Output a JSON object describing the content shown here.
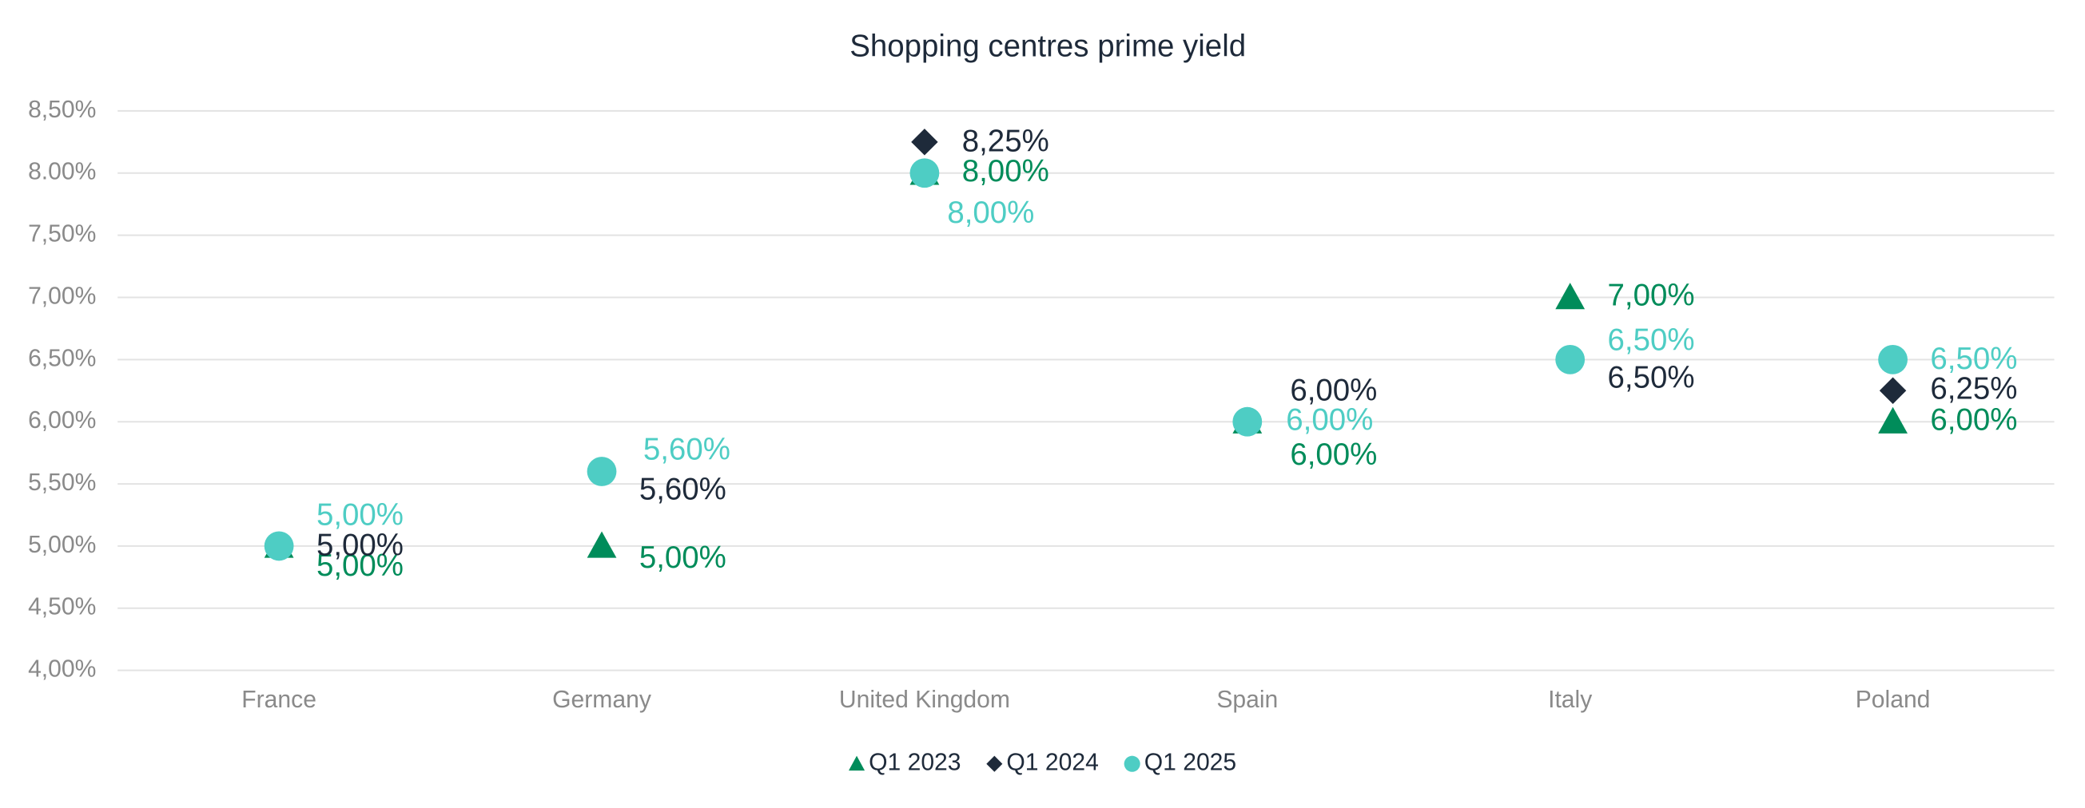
{
  "chart_data": {
    "type": "scatter",
    "title": "Shopping centres prime yield",
    "categories": [
      "France",
      "Germany",
      "United Kingdom",
      "Spain",
      "Italy",
      "Poland"
    ],
    "series": [
      {
        "name": "Q1 2023",
        "color": "#008c5a",
        "marker": "triangle",
        "values": [
          5.0,
          5.0,
          8.0,
          6.0,
          7.0,
          6.0
        ],
        "value_labels": [
          "5,00%",
          "5,00%",
          "8,00%",
          "6,00%",
          "7,00%",
          "6,00%"
        ]
      },
      {
        "name": "Q1 2024",
        "color": "#1e2a3a",
        "marker": "diamond",
        "values": [
          5.0,
          5.6,
          8.25,
          6.0,
          6.5,
          6.25
        ],
        "value_labels": [
          "5,00%",
          "5,60%",
          "8,25%",
          "6,00%",
          "6,50%",
          "6,25%"
        ]
      },
      {
        "name": "Q1 2025",
        "color": "#4ecdc4",
        "marker": "circle",
        "values": [
          5.0,
          5.6,
          8.0,
          6.0,
          6.5,
          6.5
        ],
        "value_labels": [
          "5,00%",
          "5,60%",
          "8,00%",
          "6,00%",
          "6,50%",
          "6,50%"
        ]
      }
    ],
    "ylim": [
      4.0,
      8.5
    ],
    "yticks": [
      {
        "value": 4.0,
        "label": "4,00%"
      },
      {
        "value": 4.5,
        "label": "4,50%"
      },
      {
        "value": 5.0,
        "label": "5,00%"
      },
      {
        "value": 5.5,
        "label": "5,50%"
      },
      {
        "value": 6.0,
        "label": "6,00%"
      },
      {
        "value": 6.5,
        "label": "6,50%"
      },
      {
        "value": 7.0,
        "label": "7,00%"
      },
      {
        "value": 7.5,
        "label": "7,50%"
      },
      {
        "value": 8.0,
        "label": "8.00%"
      },
      {
        "value": 8.5,
        "label": "8,50%"
      }
    ],
    "grid": true,
    "legend": "bottom"
  }
}
